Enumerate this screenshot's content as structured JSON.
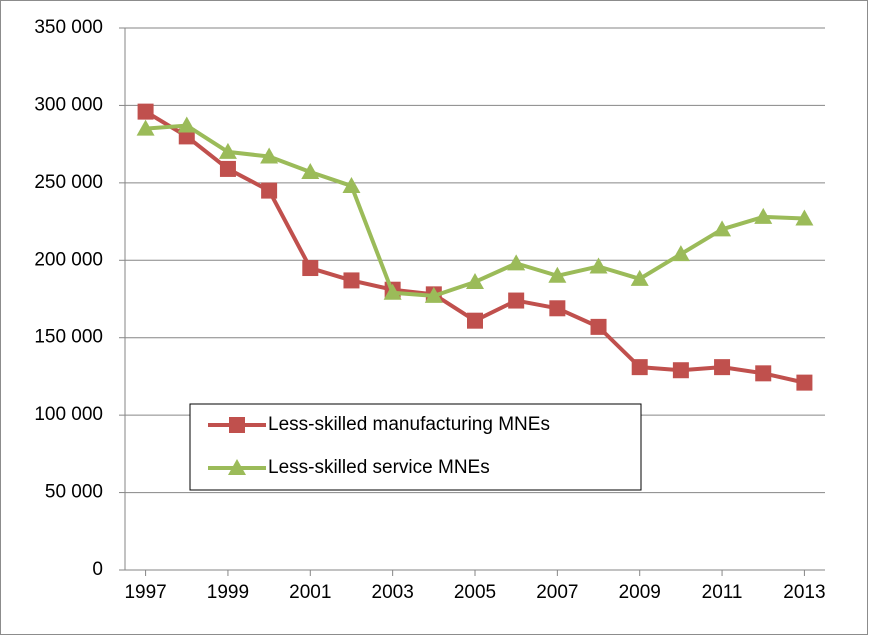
{
  "chart_data": {
    "type": "line",
    "x": [
      1997,
      1998,
      1999,
      2000,
      2001,
      2002,
      2003,
      2004,
      2005,
      2006,
      2007,
      2008,
      2009,
      2010,
      2011,
      2012,
      2013
    ],
    "series": [
      {
        "name": "Less-skilled manufacturing MNEs",
        "color": "#c0504d",
        "marker": "square",
        "values": [
          296000,
          280000,
          259000,
          245000,
          195000,
          187000,
          181000,
          178000,
          161000,
          174000,
          169000,
          157000,
          131000,
          129000,
          131000,
          127000,
          121000
        ]
      },
      {
        "name": "Less-skilled service MNEs",
        "color": "#9bbb59",
        "marker": "triangle",
        "values": [
          285000,
          287000,
          270000,
          267000,
          257000,
          248000,
          179000,
          177000,
          186000,
          198000,
          190000,
          196000,
          188000,
          204000,
          220000,
          228000,
          227000
        ]
      }
    ],
    "xlim": [
      1996.5,
      2013.5
    ],
    "xticks": [
      1997,
      1999,
      2001,
      2003,
      2005,
      2007,
      2009,
      2011,
      2013
    ],
    "ylim": [
      0,
      350000
    ],
    "yticks": [
      0,
      {
        "value": 50000,
        "label": "50 000"
      },
      {
        "value": 100000,
        "label": "100 000"
      },
      {
        "value": 150000,
        "label": "150 000"
      },
      {
        "value": 200000,
        "label": "200 000"
      },
      {
        "value": 250000,
        "label": "250 000"
      },
      {
        "value": 300000,
        "label": "300 000"
      },
      {
        "value": 350000,
        "label": "350 000"
      }
    ],
    "grid": true,
    "legend": "lower-left"
  }
}
